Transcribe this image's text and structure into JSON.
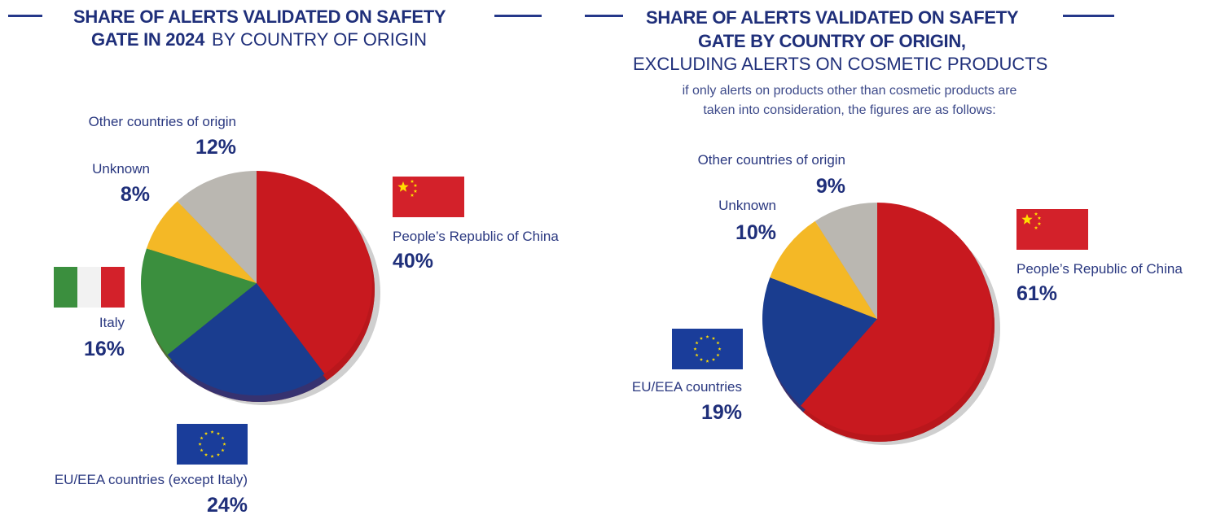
{
  "colors": {
    "china": "#c8191f",
    "eu": "#1a3d8f",
    "italy": "#3b8f3e",
    "unknown": "#f4b826",
    "other": "#bab7b1",
    "text": "#1f2f7a"
  },
  "chart_data": [
    {
      "type": "pie",
      "title_bold": "SHARE OF ALERTS VALIDATED ON SAFETY",
      "title_bold2": "GATE IN 2024",
      "title_regular": "BY COUNTRY OF ORIGIN",
      "slices": [
        {
          "label": "People’s Republic of China",
          "value": 40,
          "display": "40%",
          "color": "#c8191f",
          "flag": "china-flag"
        },
        {
          "label": "EU/EEA countries (except Italy)",
          "value": 24,
          "display": "24%",
          "color": "#1a3d8f",
          "flag": "eu-flag"
        },
        {
          "label": "Italy",
          "value": 16,
          "display": "16%",
          "color": "#3b8f3e",
          "flag": "italy-flag"
        },
        {
          "label": "Unknown",
          "value": 8,
          "display": "8%",
          "color": "#f4b826"
        },
        {
          "label": "Other countries of origin",
          "value": 12,
          "display": "12%",
          "color": "#bab7b1"
        }
      ]
    },
    {
      "type": "pie",
      "title_bold": "SHARE OF ALERTS VALIDATED ON SAFETY",
      "title_bold2": "GATE BY COUNTRY OF ORIGIN,",
      "title_regular": "EXCLUDING ALERTS ON COSMETIC PRODUCTS",
      "note_line1": "if only alerts on products other than cosmetic products are",
      "note_line2": "taken into consideration, the figures are as follows:",
      "slices": [
        {
          "label": "People’s Republic of China",
          "value": 61,
          "display": "61%",
          "color": "#c8191f",
          "flag": "china-flag"
        },
        {
          "label": "EU/EEA countries",
          "value": 19,
          "display": "19%",
          "color": "#1a3d8f",
          "flag": "eu-flag"
        },
        {
          "label": "Unknown",
          "value": 10,
          "display": "10%",
          "color": "#f4b826"
        },
        {
          "label": "Other countries of origin",
          "value": 9,
          "display": "9%",
          "color": "#bab7b1"
        }
      ]
    }
  ]
}
